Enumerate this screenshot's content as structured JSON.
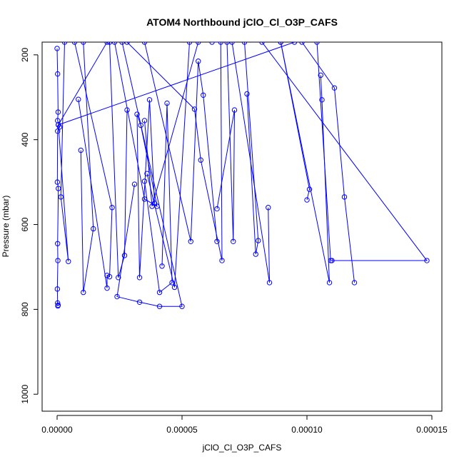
{
  "chart_data": {
    "type": "line",
    "title": "ATOM4 Northbound jClO_Cl_O3P_CAFS",
    "xlabel": "jClO_Cl_O3P_CAFS",
    "ylabel": "Pressure (mbar)",
    "xlim": [
      -6e-06,
      0.000154
    ],
    "ylim": [
      1040,
      170
    ],
    "y_reversed": true,
    "grid": false,
    "line_color": "#0000ff",
    "x_ticks": [
      0.0,
      5e-05,
      0.0001,
      0.00015
    ],
    "x_tick_labels": [
      "0.00000",
      "0.00005",
      "0.00010",
      "0.00015"
    ],
    "y_ticks": [
      200,
      400,
      600,
      800,
      1000
    ],
    "y_tick_labels": [
      "200",
      "400",
      "600",
      "800",
      "1000"
    ],
    "series": [
      {
        "x": [
          0.0,
          2e-07,
          4e-07,
          2e-07,
          1e-06,
          2e-07,
          1e-07,
          5e-07,
          2e-07,
          3e-07,
          1e-07,
          2e-07,
          3e-07,
          4e-07
        ],
        "y": [
          185,
          245,
          335,
          355,
          370,
          380,
          500,
          515,
          645,
          685,
          752,
          785,
          792,
          790
        ]
      },
      {
        "x": [
          2e-05,
          5e-07,
          4.5e-06,
          1.5e-06,
          3e-06
        ],
        "y": [
          170,
          365,
          687,
          535,
          170
        ]
      },
      {
        "x": [
          8.5e-06,
          2e-05,
          2e-05,
          2.1e-05,
          2.2e-05,
          7e-06
        ],
        "y": [
          305,
          750,
          720,
          723,
          560,
          170
        ]
      },
      {
        "x": [
          9.5e-06,
          1.05e-05,
          1.45e-05,
          1.05e-05
        ],
        "y": [
          425,
          760,
          610,
          170
        ]
      },
      {
        "x": [
          2.1e-05,
          2.45e-05,
          2.7e-05,
          2.8e-05
        ],
        "y": [
          170,
          725,
          673,
          330
        ]
      },
      {
        "x": [
          3.1e-05,
          2.4e-05,
          3.3e-05,
          4.1e-05,
          5e-05,
          2.6e-05
        ],
        "y": [
          505,
          770,
          783,
          793,
          793,
          170
        ]
      },
      {
        "x": [
          2.3e-05,
          3.5e-05,
          4e-05,
          3.35e-05,
          3.2e-05,
          3.3e-05,
          3.7e-05,
          3.9e-05
        ],
        "y": [
          170,
          540,
          557,
          366,
          340,
          725,
          306,
          550
        ]
      },
      {
        "x": [
          3.5e-05,
          4.1e-05,
          4.6e-05,
          4.4e-05,
          4.2e-05
        ],
        "y": [
          498,
          760,
          737,
          314,
          698
        ]
      },
      {
        "x": [
          3.6e-05,
          4.7e-05,
          5.3e-05
        ],
        "y": [
          480,
          748,
          170
        ]
      },
      {
        "x": [
          3.5e-05,
          5.35e-05,
          5.65e-05,
          5.85e-05,
          6.4e-05
        ],
        "y": [
          170,
          640,
          215,
          295,
          640
        ]
      },
      {
        "x": [
          2.8e-05,
          5.5e-05,
          5.75e-05,
          6.6e-05,
          6.55e-05,
          6.2e-05
        ],
        "y": [
          170,
          328,
          448,
          685,
          170,
          170
        ]
      },
      {
        "x": [
          6.4e-05,
          7.1e-05,
          7.05e-05,
          6.8e-05
        ],
        "y": [
          563,
          330,
          640,
          170
        ]
      },
      {
        "x": [
          7.6e-05,
          7.95e-05,
          8.05e-05,
          7.5e-05
        ],
        "y": [
          292,
          670,
          638,
          170
        ]
      },
      {
        "x": [
          7e-05,
          8.5e-05,
          8.45e-05
        ],
        "y": [
          170,
          737,
          560
        ]
      },
      {
        "x": [
          3.5e-05,
          3.8e-05,
          5.65e-05
        ],
        "y": [
          355,
          557,
          170
        ]
      },
      {
        "x": [
          0.0001,
          0.000101,
          8.95e-05
        ],
        "y": [
          542,
          517,
          170
        ]
      },
      {
        "x": [
          0.0001055,
          0.000106,
          0.000109,
          8.95e-05
        ],
        "y": [
          248,
          306,
          737,
          170
        ]
      },
      {
        "x": [
          9.8e-05,
          0.000111,
          0.000115,
          0.000119
        ],
        "y": [
          170,
          278,
          535,
          737
        ]
      },
      {
        "x": [
          0.000104,
          0.0001095,
          0.00011,
          0.000148,
          8.2e-05
        ],
        "y": [
          170,
          685,
          685,
          685,
          170
        ]
      },
      {
        "x": [
          5e-07,
          9.5e-05
        ],
        "y": [
          365,
          170
        ]
      }
    ]
  }
}
